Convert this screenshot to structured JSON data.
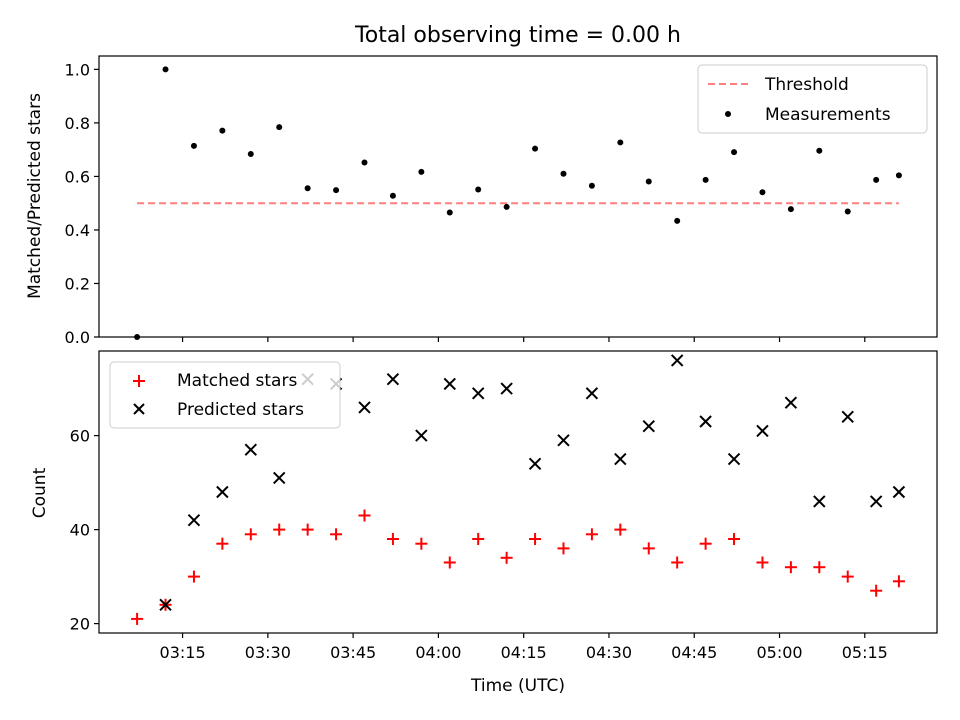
{
  "chart_data": [
    {
      "type": "line",
      "title": "Total observing time = 0.00 h",
      "xlabel": "",
      "ylabel": "Matched/Predicted stars",
      "ylim": [
        0,
        1.05
      ],
      "yticks": [
        "0.0",
        "0.2",
        "0.4",
        "0.6",
        "0.8",
        "1.0"
      ],
      "legend_position": "upper right",
      "series": [
        {
          "name": "Threshold",
          "style": "dashed-line",
          "color": "#ff7f7f",
          "x": [
            "03:07",
            "05:21"
          ],
          "values": [
            0.5,
            0.5
          ]
        },
        {
          "name": "Measurements",
          "style": "dots",
          "color": "#000000",
          "x": [
            "03:07",
            "03:12",
            "03:17",
            "03:22",
            "03:27",
            "03:32",
            "03:37",
            "03:42",
            "03:47",
            "03:52",
            "03:57",
            "04:02",
            "04:07",
            "04:12",
            "04:17",
            "04:22",
            "04:27",
            "04:32",
            "04:37",
            "04:42",
            "04:47",
            "04:52",
            "04:57",
            "05:02",
            "05:07",
            "05:12",
            "05:17",
            "05:21"
          ],
          "values": [
            0.0,
            1.0,
            0.714,
            0.771,
            0.684,
            0.784,
            0.556,
            0.549,
            0.652,
            0.528,
            0.617,
            0.465,
            0.551,
            0.486,
            0.704,
            0.61,
            0.565,
            0.727,
            0.581,
            0.434,
            0.587,
            0.691,
            0.541,
            0.478,
            0.696,
            0.469,
            0.587,
            0.604
          ]
        }
      ]
    },
    {
      "type": "scatter",
      "title": "",
      "xlabel": "Time (UTC)",
      "ylabel": "Count",
      "ylim": [
        18,
        78
      ],
      "yticks": [
        "20",
        "40",
        "60"
      ],
      "xticks": [
        "03:15",
        "03:30",
        "03:45",
        "04:00",
        "04:15",
        "04:30",
        "04:45",
        "05:00",
        "05:15"
      ],
      "legend_position": "upper left",
      "series": [
        {
          "name": "Matched stars",
          "marker": "plus",
          "color": "#ff0000",
          "x": [
            "03:07",
            "03:12",
            "03:17",
            "03:22",
            "03:27",
            "03:32",
            "03:37",
            "03:42",
            "03:47",
            "03:52",
            "03:57",
            "04:02",
            "04:07",
            "04:12",
            "04:17",
            "04:22",
            "04:27",
            "04:32",
            "04:37",
            "04:42",
            "04:47",
            "04:52",
            "04:57",
            "05:02",
            "05:07",
            "05:12",
            "05:17",
            "05:21"
          ],
          "values": [
            21,
            24,
            30,
            37,
            39,
            40,
            40,
            39,
            43,
            38,
            37,
            33,
            38,
            34,
            38,
            36,
            39,
            40,
            36,
            33,
            37,
            38,
            33,
            32,
            32,
            30,
            27,
            29
          ]
        },
        {
          "name": "Predicted stars",
          "marker": "x",
          "color": "#000000",
          "x": [
            "03:12",
            "03:17",
            "03:22",
            "03:27",
            "03:32",
            "03:37",
            "03:42",
            "03:47",
            "03:52",
            "03:57",
            "04:02",
            "04:07",
            "04:12",
            "04:17",
            "04:22",
            "04:27",
            "04:32",
            "04:37",
            "04:42",
            "04:47",
            "04:52",
            "04:57",
            "05:02",
            "05:07",
            "05:12",
            "05:17",
            "05:21"
          ],
          "values": [
            24,
            42,
            48,
            57,
            51,
            72,
            71,
            66,
            72,
            60,
            71,
            69,
            70,
            54,
            59,
            69,
            55,
            62,
            76,
            63,
            55,
            61,
            67,
            46,
            64,
            46,
            48
          ]
        }
      ]
    }
  ]
}
